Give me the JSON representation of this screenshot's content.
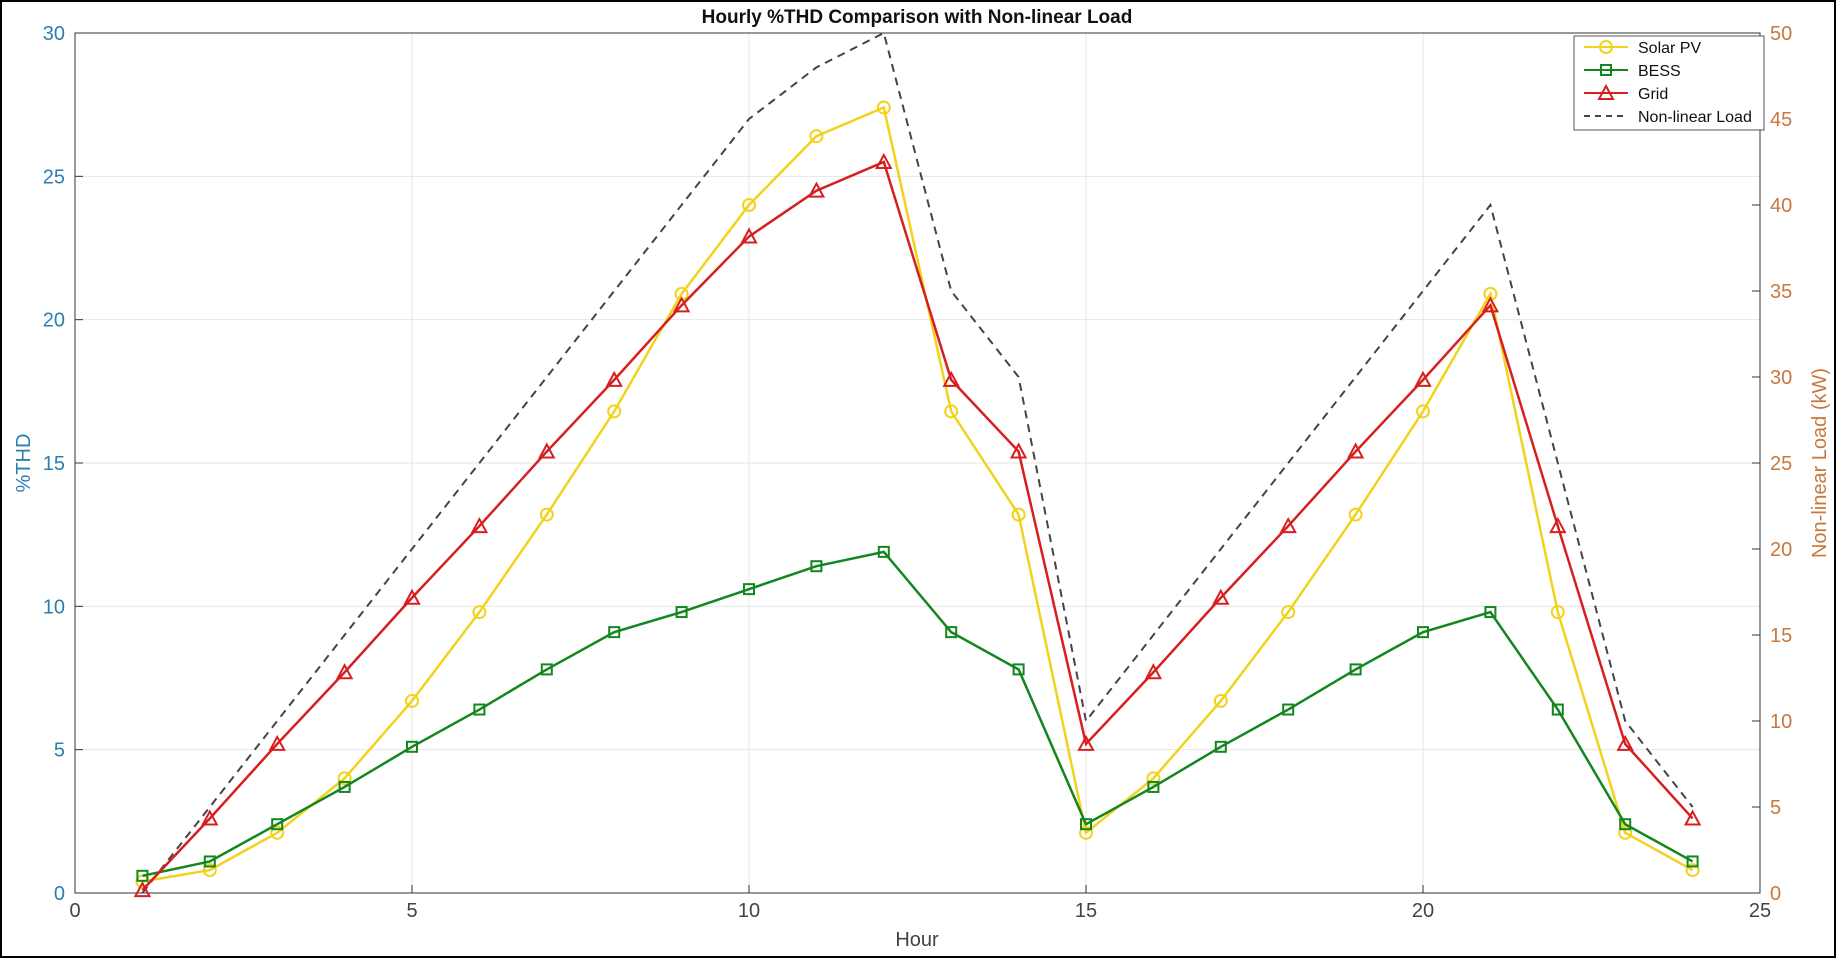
{
  "chart_data": {
    "type": "line",
    "title": "Hourly %THD Comparison with Non-linear Load",
    "xlabel": "Hour",
    "ylabel_left": "%THD",
    "ylabel_right": "Non-linear Load (kW)",
    "xlim": [
      0,
      25
    ],
    "ylim_left": [
      0,
      30
    ],
    "ylim_right": [
      0,
      50
    ],
    "xticks": [
      0,
      5,
      10,
      15,
      20,
      25
    ],
    "yticks_left": [
      0,
      5,
      10,
      15,
      20,
      25,
      30
    ],
    "yticks_right": [
      0,
      5,
      10,
      15,
      20,
      25,
      30,
      35,
      40,
      45,
      50
    ],
    "grid": true,
    "legend_position": "top-right",
    "x": [
      1,
      2,
      3,
      4,
      5,
      6,
      7,
      8,
      9,
      10,
      11,
      12,
      13,
      14,
      15,
      16,
      17,
      18,
      19,
      20,
      21,
      22,
      23,
      24
    ],
    "series": [
      {
        "name": "Solar PV",
        "axis": "left",
        "color": "#f2d31c",
        "marker": "circle",
        "values": [
          0.4,
          0.8,
          2.1,
          4.0,
          6.7,
          9.8,
          13.2,
          16.8,
          20.9,
          24.0,
          26.4,
          27.4,
          16.8,
          13.2,
          2.1,
          4.0,
          6.7,
          9.8,
          13.2,
          16.8,
          20.9,
          9.8,
          2.1,
          0.8
        ]
      },
      {
        "name": "BESS",
        "axis": "left",
        "color": "#13861d",
        "marker": "square",
        "values": [
          0.6,
          1.1,
          2.4,
          3.7,
          5.1,
          6.4,
          7.8,
          9.1,
          9.8,
          10.6,
          11.4,
          11.9,
          9.1,
          7.8,
          2.4,
          3.7,
          5.1,
          6.4,
          7.8,
          9.1,
          9.8,
          6.4,
          2.4,
          1.1
        ]
      },
      {
        "name": "Grid",
        "axis": "left",
        "color": "#d71f1f",
        "marker": "triangle",
        "values": [
          0.1,
          2.6,
          5.2,
          7.7,
          10.3,
          12.8,
          15.4,
          17.9,
          20.5,
          22.9,
          24.5,
          25.5,
          17.9,
          15.4,
          5.2,
          7.7,
          10.3,
          12.8,
          15.4,
          17.9,
          20.5,
          12.8,
          5.2,
          2.6
        ]
      },
      {
        "name": "Non-linear Load",
        "axis": "right",
        "color": "#444444",
        "marker": "none",
        "dash": true,
        "values": [
          0,
          5,
          10,
          15,
          20,
          25,
          30,
          35,
          40,
          45,
          48,
          50,
          35,
          30,
          10,
          15,
          20,
          25,
          30,
          35,
          40,
          25,
          10,
          5
        ]
      }
    ]
  }
}
